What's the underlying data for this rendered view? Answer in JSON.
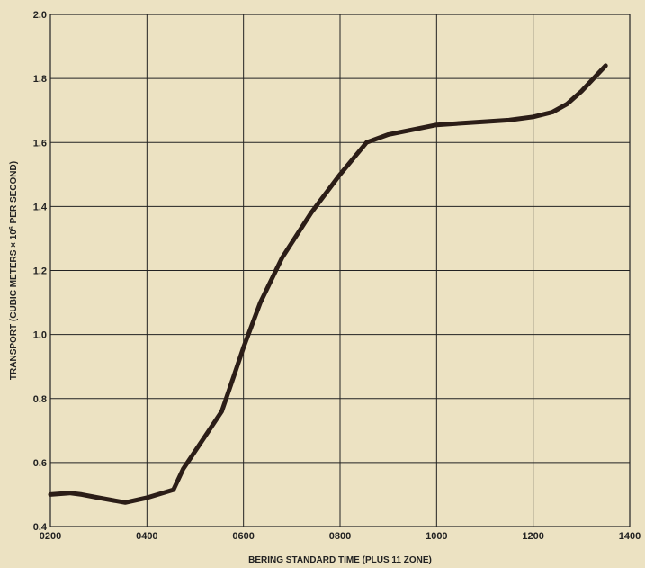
{
  "chart_data": {
    "type": "line",
    "title": "",
    "xlabel": "BERING STANDARD TIME (PLUS 11 ZONE)",
    "ylabel_prefix": "TRANSPORT (CUBIC METERS ",
    "ylabel_times": "×",
    "ylabel_ten": " 10",
    "ylabel_exp": "6",
    "ylabel_suffix": " PER SECOND)",
    "xlim": [
      200,
      1400
    ],
    "ylim": [
      0.4,
      2.0
    ],
    "x_ticks": [
      200,
      400,
      600,
      800,
      1000,
      1200,
      1400
    ],
    "x_tick_labels": [
      "0200",
      "0400",
      "0600",
      "0800",
      "1000",
      "1200",
      "1400"
    ],
    "x_grid": [
      200,
      400,
      600,
      800,
      1000,
      1200,
      1400
    ],
    "y_ticks": [
      0.4,
      0.6,
      0.8,
      1.0,
      1.2,
      1.4,
      1.6,
      1.8,
      2.0
    ],
    "y_tick_labels": [
      "0.4",
      "0.6",
      "0.8",
      "1.0",
      "1.2",
      "1.4",
      "1.6",
      "1.8",
      "2.0"
    ],
    "y_grid": [
      0.4,
      0.6,
      0.8,
      1.0,
      1.2,
      1.4,
      1.6,
      1.8,
      2.0
    ],
    "grid": true,
    "series": [
      {
        "color": "#2b1d17",
        "x": [
          200,
          240,
          265,
          300,
          355,
          400,
          455,
          475,
          515,
          555,
          580,
          600,
          635,
          680,
          740,
          800,
          855,
          900,
          1000,
          1100,
          1150,
          1200,
          1240,
          1270,
          1300,
          1350
        ],
        "y": [
          0.5,
          0.505,
          0.5,
          0.49,
          0.475,
          0.49,
          0.515,
          0.58,
          0.67,
          0.76,
          0.87,
          0.96,
          1.1,
          1.24,
          1.38,
          1.5,
          1.6,
          1.625,
          1.655,
          1.665,
          1.67,
          1.68,
          1.695,
          1.72,
          1.76,
          1.84
        ]
      }
    ]
  }
}
